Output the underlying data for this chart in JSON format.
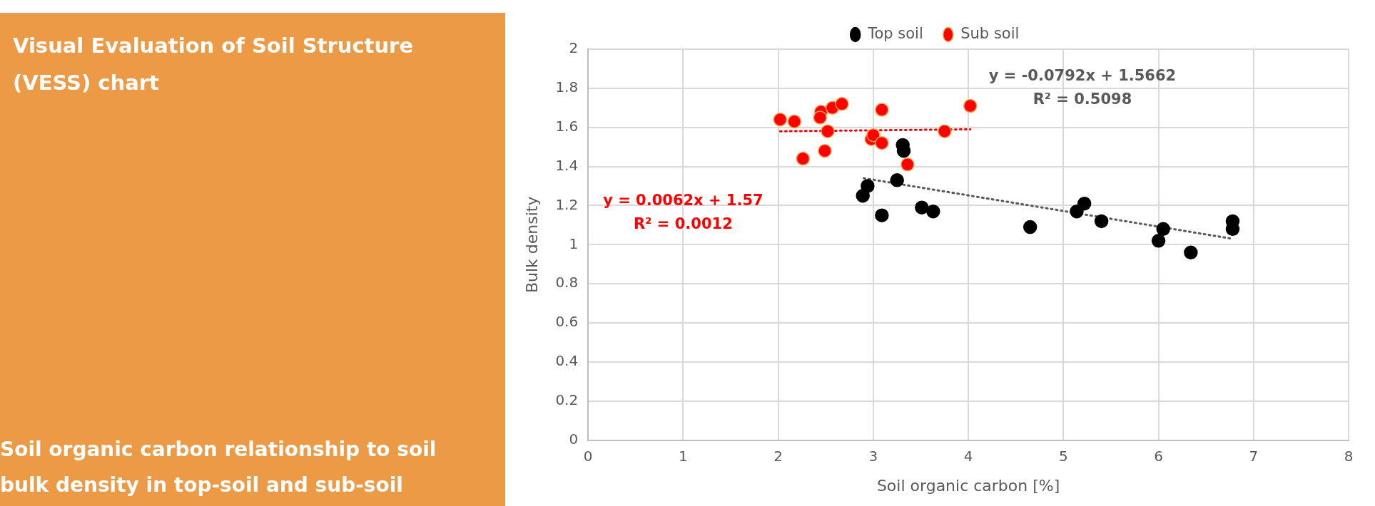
{
  "chart_data": {
    "type": "scatter",
    "title": "Visual Evaluation of Soil Structure (VESS) chart",
    "subtitle": "Soil organic carbon relationship to soil bulk density in top-soil and sub-soil",
    "xlabel": "Soil organic carbon [%]",
    "ylabel": "Bulk density",
    "xlim": [
      0,
      8
    ],
    "xticks": [
      0,
      1,
      2,
      3,
      4,
      5,
      6,
      7,
      8
    ],
    "ylim": [
      0,
      2
    ],
    "yticks": [
      0,
      0.2,
      0.4,
      0.6,
      0.8,
      1,
      1.2,
      1.4,
      1.6,
      1.8,
      2
    ],
    "grid": true,
    "legend": "top",
    "marker": "circle",
    "series": [
      {
        "name": "Top soil",
        "color": "#000000",
        "x": [
          2.89,
          2.94,
          3.09,
          3.25,
          3.31,
          3.32,
          3.51,
          3.63,
          4.65,
          5.14,
          5.22,
          5.4,
          6.0,
          6.05,
          6.34,
          6.78,
          6.78
        ],
        "values": [
          1.25,
          1.3,
          1.15,
          1.33,
          1.51,
          1.48,
          1.19,
          1.17,
          1.09,
          1.17,
          1.21,
          1.12,
          1.02,
          1.08,
          0.96,
          1.12,
          1.08
        ]
      },
      {
        "name": "Sub soil",
        "color": "#ff0000",
        "x": [
          2.02,
          2.17,
          2.26,
          2.45,
          2.44,
          2.49,
          2.52,
          2.57,
          2.67,
          2.98,
          3.0,
          3.09,
          3.09,
          3.36,
          3.75,
          4.02
        ],
        "values": [
          1.64,
          1.63,
          1.44,
          1.68,
          1.65,
          1.48,
          1.58,
          1.7,
          1.72,
          1.54,
          1.56,
          1.69,
          1.52,
          1.41,
          1.58,
          1.71
        ]
      },
      {
        "type": "line",
        "color": "#595959",
        "x": [
          2.9,
          6.78
        ],
        "values": [
          1.34,
          1.03
        ],
        "line_style": "dotted",
        "marker": "none"
      },
      {
        "type": "line",
        "color": "#ff0000",
        "x": [
          2.02,
          4.02
        ],
        "values": [
          1.58,
          1.59
        ],
        "line_style": "dotted",
        "marker": "none"
      }
    ],
    "annotations": [
      "y = -0.0792x + 1.5662",
      "R² = 0.5098",
      "y = 0.0062x + 1.57",
      "R² = 0.0012"
    ]
  }
}
